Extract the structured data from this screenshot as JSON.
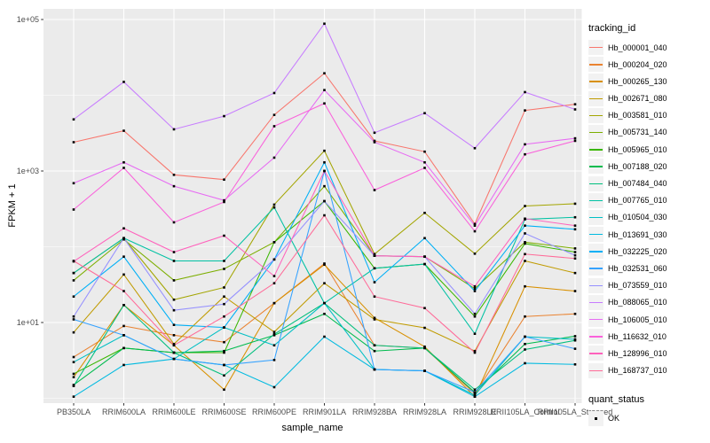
{
  "chart_data": {
    "type": "line",
    "title": "",
    "xlabel": "sample_name",
    "ylabel": "FPKM + 1",
    "y_scale": "log10",
    "ylim": [
      0.8,
      140000
    ],
    "y_ticks": [
      {
        "label": "1e+01",
        "value": 10
      },
      {
        "label": "1e+03",
        "value": 1000
      },
      {
        "label": "1e+05",
        "value": 100000
      }
    ],
    "y_minor_ticks": [
      1,
      100,
      10000
    ],
    "grid": "gray panel, white gridlines",
    "legend_position": "right",
    "legend_title": "tracking_id",
    "legend2_title": "quant_status",
    "legend2_items": [
      "OK"
    ],
    "point_shape": "small black square",
    "categories": [
      "PB350LA",
      "RRIM600LA",
      "RRIM600LE",
      "RRIM600SE",
      "RRIM600PE",
      "RRIM901LA",
      "RRIM928BA",
      "RRIM928LA",
      "RRIM928LE",
      "RRII105LA_Control",
      "RRII105LA_Stressed"
    ],
    "series": [
      {
        "name": "Hb_000001_040",
        "color": "#F8766D",
        "values": [
          2400,
          3400,
          890,
          770,
          5500,
          19500,
          2500,
          1800,
          200,
          6300,
          7600
        ]
      },
      {
        "name": "Hb_000204_020",
        "color": "#EA8331",
        "values": [
          3.5,
          9,
          6.8,
          5.5,
          18,
          60,
          5,
          4.6,
          1.15,
          12,
          13
        ]
      },
      {
        "name": "Hb_000265_130",
        "color": "#D89000",
        "values": [
          1.9,
          17,
          5,
          1.3,
          18,
          58,
          11.5,
          4.8,
          1.05,
          30,
          26
        ]
      },
      {
        "name": "Hb_002671_080",
        "color": "#C09B00",
        "values": [
          7.4,
          43,
          5.2,
          22,
          7.5,
          33,
          11,
          8.5,
          4.2,
          65,
          45
        ]
      },
      {
        "name": "Hb_003581_010",
        "color": "#A3A500",
        "values": [
          45,
          130,
          20,
          29,
          360,
          1850,
          80,
          280,
          81,
          345,
          370
        ]
      },
      {
        "name": "Hb_005731_140",
        "color": "#7CAE00",
        "values": [
          36,
          125,
          36,
          51,
          115,
          630,
          76,
          74,
          28,
          115,
          95
        ]
      },
      {
        "name": "Hb_005965_010",
        "color": "#39B600",
        "values": [
          2.1,
          4.6,
          4.0,
          4.0,
          115,
          400,
          52,
          59,
          12,
          110,
          85
        ]
      },
      {
        "name": "Hb_007188_020",
        "color": "#00BB4E",
        "values": [
          1.5,
          4.6,
          4.0,
          4.2,
          6.8,
          13,
          4.2,
          4.6,
          1.2,
          5.2,
          6.6
        ]
      },
      {
        "name": "Hb_007484_040",
        "color": "#00BF7D",
        "values": [
          1.45,
          17,
          4.0,
          2.0,
          7.0,
          18,
          5.0,
          4.6,
          1.3,
          4.4,
          5.8
        ]
      },
      {
        "name": "Hb_007765_010",
        "color": "#00C1A3",
        "values": [
          45,
          130,
          65,
          65,
          330,
          18,
          52,
          59,
          7.1,
          230,
          245
        ]
      },
      {
        "name": "Hb_010504_030",
        "color": "#00BFC4",
        "values": [
          3.0,
          6.8,
          3.3,
          8.6,
          5.0,
          18,
          2.4,
          2.3,
          1.1,
          6.5,
          6.0
        ]
      },
      {
        "name": "Hb_013691_030",
        "color": "#00BAE0",
        "values": [
          1.05,
          2.75,
          3.3,
          2.75,
          1.4,
          6.5,
          2.4,
          2.3,
          1.05,
          2.9,
          2.8
        ]
      },
      {
        "name": "Hb_032225_020",
        "color": "#00B0F6",
        "values": [
          22,
          74,
          9.3,
          8.6,
          68,
          1300,
          34,
          130,
          26,
          190,
          170
        ]
      },
      {
        "name": "Hb_032531_060",
        "color": "#35A2FF",
        "values": [
          11,
          6.8,
          3.3,
          2.75,
          3.2,
          1000,
          2.4,
          2.3,
          1.2,
          6.5,
          4.5
        ]
      },
      {
        "name": "Hb_073559_010",
        "color": "#9590FF",
        "values": [
          12,
          130,
          14.5,
          17.5,
          68,
          400,
          76,
          74,
          13,
          150,
          77
        ]
      },
      {
        "name": "Hb_088065_010",
        "color": "#C77CFF",
        "values": [
          4800,
          15000,
          3550,
          5300,
          10700,
          88000,
          3200,
          5800,
          2000,
          11000,
          6500
        ]
      },
      {
        "name": "Hb_106005_010",
        "color": "#E76BF3",
        "values": [
          690,
          1300,
          630,
          410,
          1500,
          11700,
          2400,
          1300,
          190,
          2250,
          2700
        ]
      },
      {
        "name": "Hb_116632_010",
        "color": "#FA62DB",
        "values": [
          310,
          1100,
          210,
          390,
          3900,
          7800,
          560,
          1100,
          160,
          1660,
          2500
        ]
      },
      {
        "name": "Hb_128996_010",
        "color": "#FF62BC",
        "values": [
          64,
          175,
          85,
          140,
          41,
          1000,
          76,
          74,
          30,
          235,
          190
        ]
      },
      {
        "name": "Hb_168737_010",
        "color": "#FF6A98",
        "values": [
          65,
          26,
          5,
          12,
          33,
          260,
          22,
          15.5,
          4.0,
          80,
          70
        ]
      }
    ]
  },
  "style": {
    "panel_bg": "#EBEBEB",
    "grid_color": "#FFFFFF",
    "tick_label_color": "#4D4D4D",
    "axis_title_color": "#000000",
    "legend_key_bg": "#F2F2F2",
    "point_color": "#000000",
    "background": "#FFFFFF"
  }
}
